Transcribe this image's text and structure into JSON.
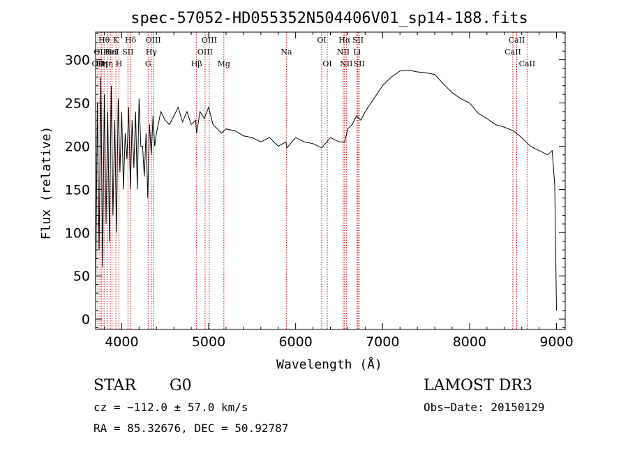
{
  "chart_data": {
    "type": "line",
    "title": "spec-57052-HD055352N504406V01_sp14-188.fits",
    "xlabel": "Wavelength (Å)",
    "ylabel": "Flux (relative)",
    "xlim": [
      3700,
      9100
    ],
    "ylim": [
      -12,
      332
    ],
    "x_ticks": [
      4000,
      5000,
      6000,
      7000,
      8000,
      9000
    ],
    "y_ticks": [
      0,
      50,
      100,
      150,
      200,
      250,
      300
    ],
    "x_tick_labels": [
      "4000",
      "5000",
      "6000",
      "7000",
      "8000",
      "9000"
    ],
    "y_tick_labels": [
      "0",
      "50",
      "100",
      "150",
      "200",
      "250",
      "300"
    ],
    "grid": false,
    "series": [
      {
        "x": [
          3700,
          3720,
          3740,
          3760,
          3780,
          3800,
          3820,
          3840,
          3860,
          3880,
          3900,
          3920,
          3940,
          3960,
          3980,
          4000,
          4020,
          4040,
          4060,
          4080,
          4100,
          4120,
          4140,
          4160,
          4180,
          4200,
          4220,
          4240,
          4260,
          4280,
          4300,
          4320,
          4340,
          4360,
          4380,
          4400,
          4450,
          4500,
          4550,
          4600,
          4650,
          4700,
          4750,
          4800,
          4850,
          4861,
          4900,
          4950,
          5000,
          5050,
          5100,
          5150,
          5200,
          5300,
          5400,
          5500,
          5600,
          5700,
          5800,
          5890,
          5900,
          6000,
          6100,
          6200,
          6300,
          6400,
          6500,
          6563,
          6600,
          6650,
          6700,
          6750,
          6800,
          6900,
          7000,
          7100,
          7200,
          7300,
          7400,
          7500,
          7600,
          7700,
          7800,
          7900,
          8000,
          8100,
          8200,
          8300,
          8400,
          8500,
          8600,
          8700,
          8800,
          8900,
          8950,
          8980,
          9000
        ],
        "y": [
          20,
          250,
          80,
          280,
          60,
          260,
          110,
          240,
          90,
          270,
          120,
          230,
          100,
          255,
          170,
          240,
          150,
          215,
          185,
          245,
          150,
          230,
          175,
          240,
          150,
          255,
          200,
          200,
          165,
          215,
          140,
          225,
          190,
          235,
          200,
          215,
          240,
          230,
          225,
          235,
          245,
          228,
          240,
          225,
          230,
          215,
          240,
          232,
          245,
          225,
          220,
          215,
          220,
          218,
          212,
          210,
          205,
          210,
          200,
          205,
          198,
          210,
          205,
          203,
          198,
          210,
          205,
          205,
          220,
          225,
          235,
          230,
          240,
          255,
          270,
          280,
          287,
          288,
          286,
          285,
          283,
          272,
          262,
          255,
          250,
          238,
          232,
          225,
          222,
          218,
          210,
          200,
          195,
          190,
          195,
          155,
          10
        ]
      }
    ],
    "lines": [
      {
        "wave": 3727,
        "label": "OII",
        "row": 3
      },
      {
        "wave": 3750,
        "label": "OII",
        "row": 2
      },
      {
        "wave": 3771,
        "label": "Hη",
        "row": 3
      },
      {
        "wave": 3798,
        "label": "Hθ",
        "row": 1
      },
      {
        "wave": 3835,
        "label": "Hη",
        "row": 3
      },
      {
        "wave": 3869,
        "label": "HeI",
        "row": 2
      },
      {
        "wave": 3889,
        "label": "HeI",
        "row": 2
      },
      {
        "wave": 3934,
        "label": "K",
        "row": 1
      },
      {
        "wave": 3969,
        "label": "H",
        "row": 3
      },
      {
        "wave": 4072,
        "label": "SII",
        "row": 2
      },
      {
        "wave": 4102,
        "label": "Hδ",
        "row": 1
      },
      {
        "wave": 4304,
        "label": "G",
        "row": 3
      },
      {
        "wave": 4341,
        "label": "Hγ",
        "row": 2
      },
      {
        "wave": 4363,
        "label": "OIII",
        "row": 1
      },
      {
        "wave": 4861,
        "label": "Hβ",
        "row": 3
      },
      {
        "wave": 4959,
        "label": "OIII",
        "row": 2
      },
      {
        "wave": 5007,
        "label": "OIII",
        "row": 1
      },
      {
        "wave": 5175,
        "label": "Mg",
        "row": 3
      },
      {
        "wave": 5893,
        "label": "Na",
        "row": 2
      },
      {
        "wave": 6300,
        "label": "OI",
        "row": 1
      },
      {
        "wave": 6364,
        "label": "OI",
        "row": 3
      },
      {
        "wave": 6548,
        "label": "NII",
        "row": 2
      },
      {
        "wave": 6563,
        "label": "Hα",
        "row": 1
      },
      {
        "wave": 6583,
        "label": "NII",
        "row": 3
      },
      {
        "wave": 6707,
        "label": "Li",
        "row": 2
      },
      {
        "wave": 6717,
        "label": "SII",
        "row": 1
      },
      {
        "wave": 6731,
        "label": "SII",
        "row": 3
      },
      {
        "wave": 8498,
        "label": "CaII",
        "row": 2
      },
      {
        "wave": 8542,
        "label": "CaII",
        "row": 1
      },
      {
        "wave": 8662,
        "label": "CaII",
        "row": 3
      }
    ]
  },
  "info": {
    "class": "STAR",
    "subclass": "G0",
    "survey": "LAMOST DR3",
    "cz": "cz = −112.0 ± 57.0 km/s",
    "obs_date": "Obs−Date: 20150129",
    "radec": "RA =  85.32676, DEC =  50.92787"
  },
  "colors": {
    "spectrum": "#000000",
    "line_marker": "#cc0000"
  }
}
